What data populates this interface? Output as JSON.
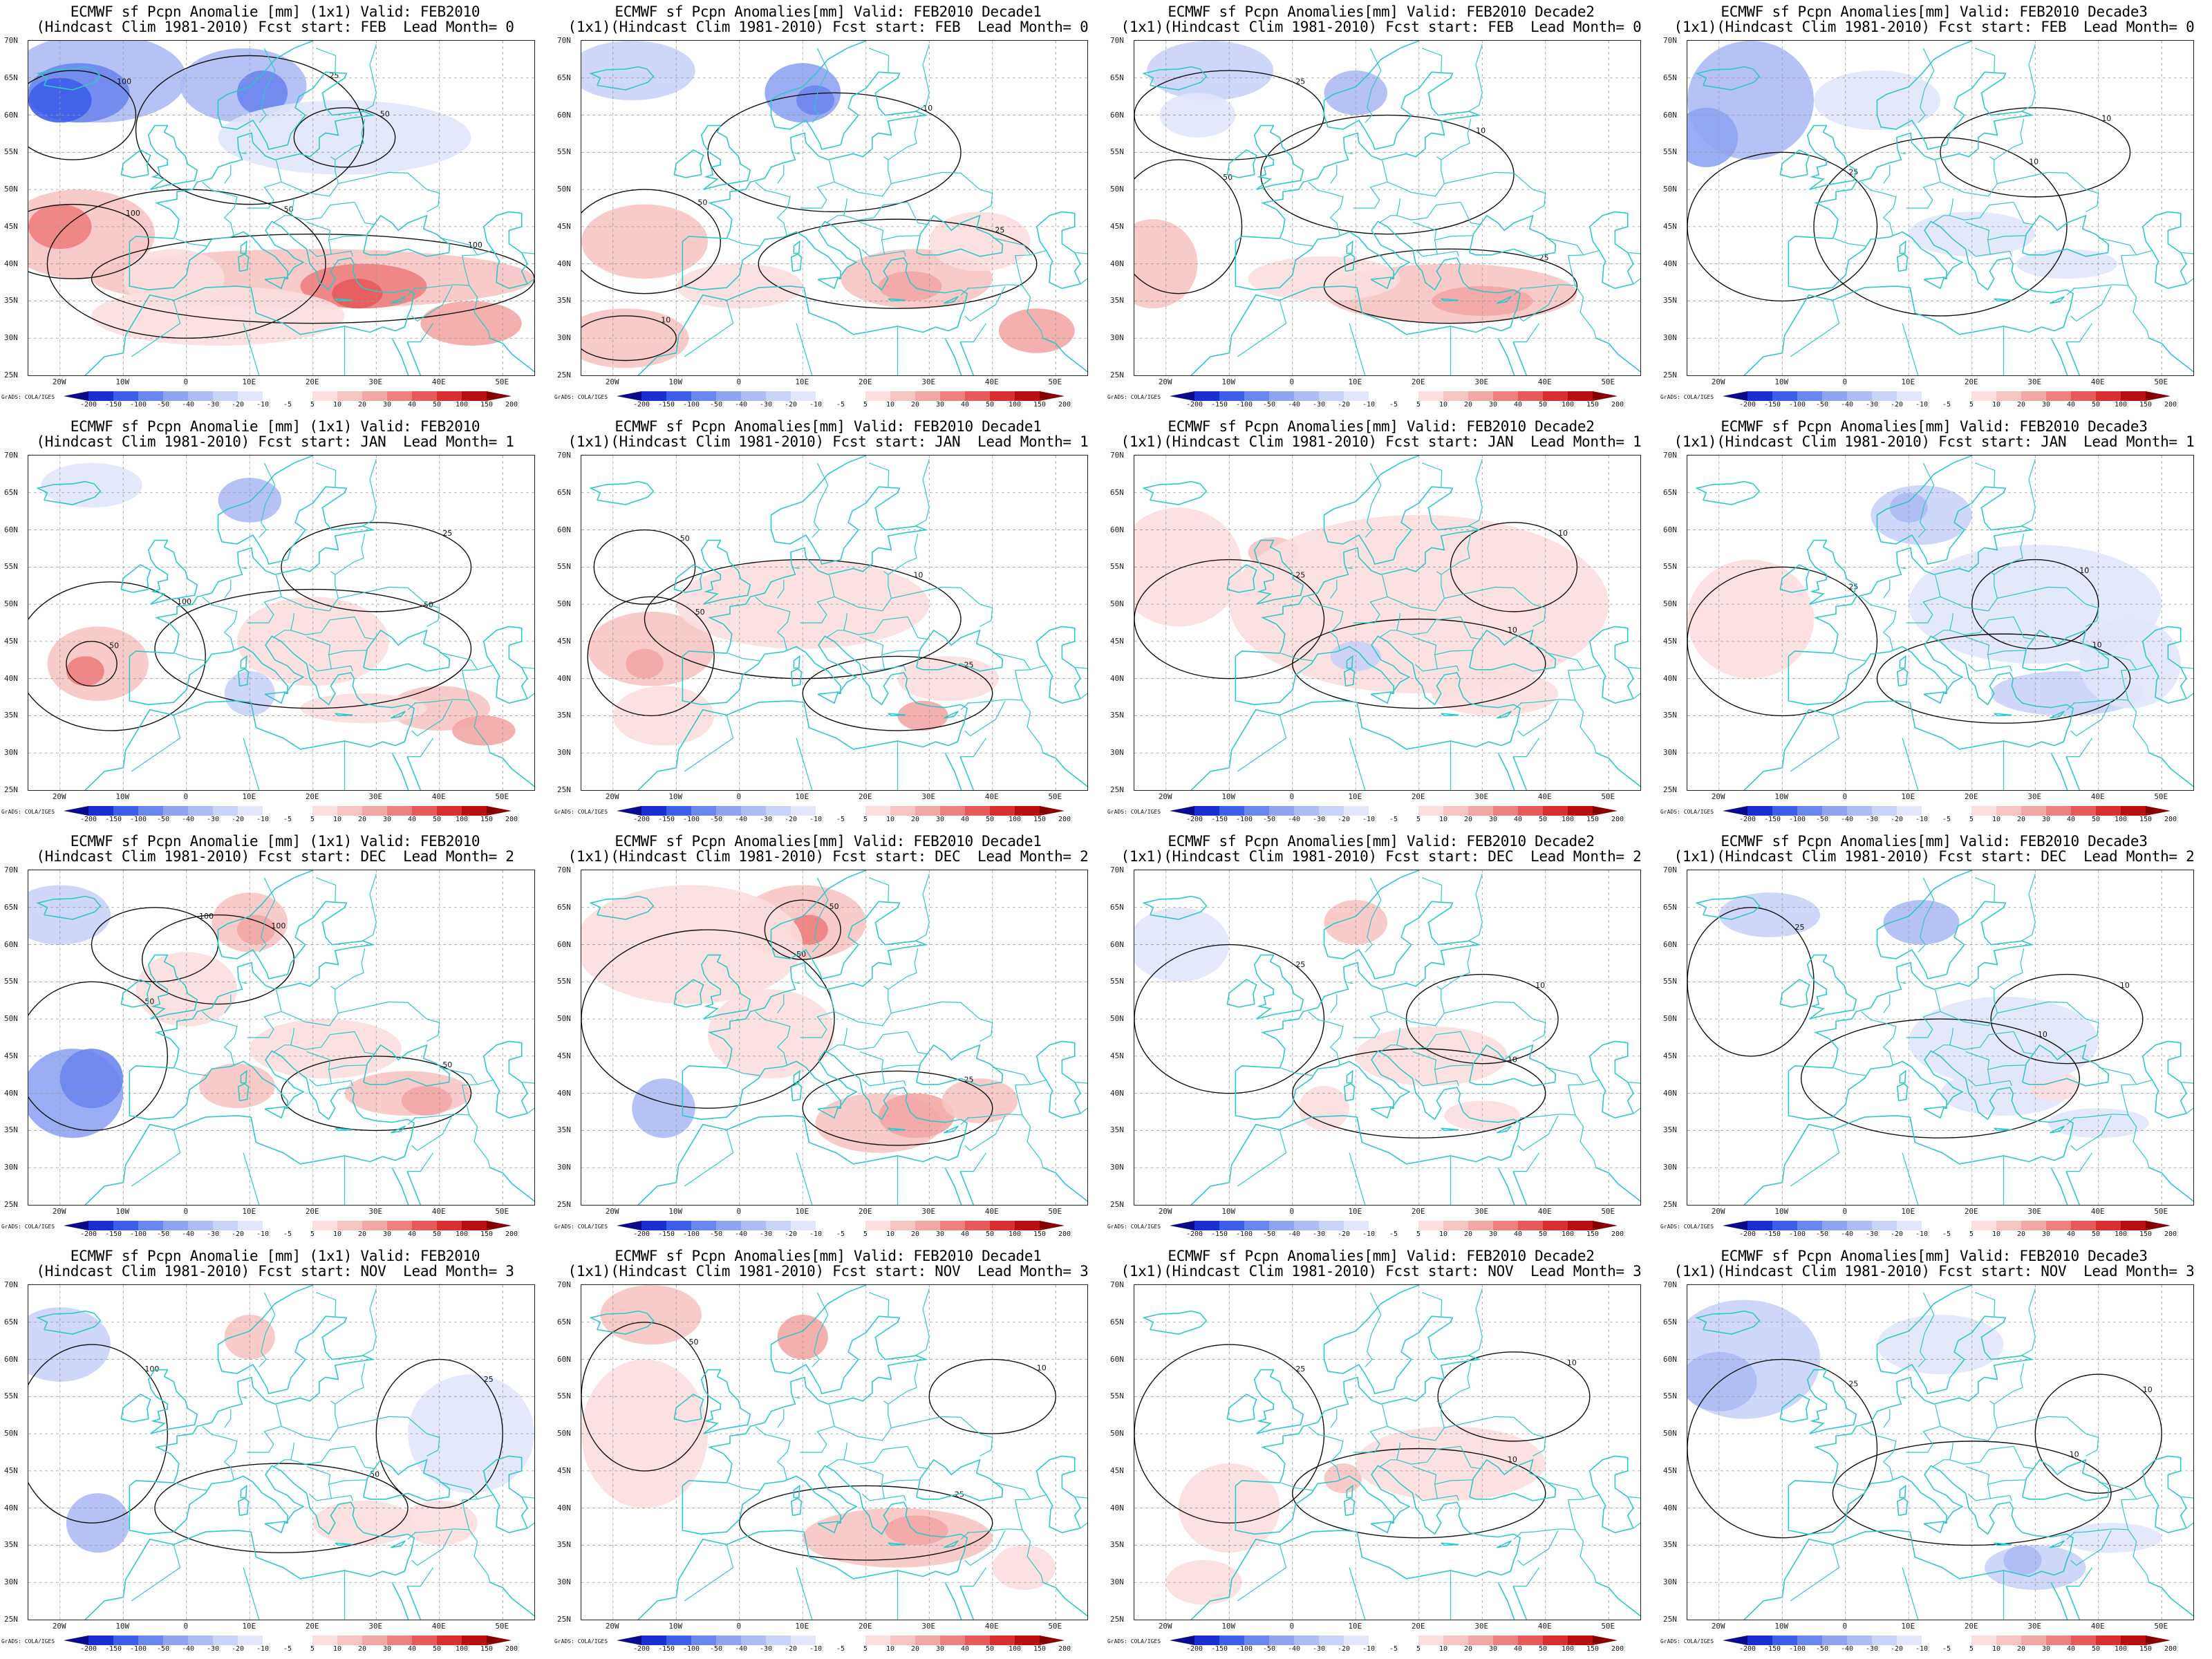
{
  "panels": [
    {
      "line1": "ECMWF sf Pcpn Anomalie [mm] (1x1) Valid: FEB2010",
      "line2": "(Hindcast Clim 1981-2010) Fcst start: FEB  Lead Month= 0",
      "style": 0
    },
    {
      "line1": "ECMWF sf Pcpn Anomalies[mm] Valid: FEB2010 Decade1",
      "line2": "(1x1)(Hindcast Clim 1981-2010) Fcst start: FEB  Lead Month= 0",
      "style": 1
    },
    {
      "line1": "ECMWF sf Pcpn Anomalies[mm] Valid: FEB2010 Decade2",
      "line2": "(1x1)(Hindcast Clim 1981-2010) Fcst start: FEB  Lead Month= 0",
      "style": 2
    },
    {
      "line1": "ECMWF sf Pcpn Anomalies[mm] Valid: FEB2010 Decade3",
      "line2": "(1x1)(Hindcast Clim 1981-2010) Fcst start: FEB  Lead Month= 0",
      "style": 3
    },
    {
      "line1": "ECMWF sf Pcpn Anomalie [mm] (1x1) Valid: FEB2010",
      "line2": "(Hindcast Clim 1981-2010) Fcst start: JAN  Lead Month= 1",
      "style": 4
    },
    {
      "line1": "ECMWF sf Pcpn Anomalies[mm] Valid: FEB2010 Decade1",
      "line2": "(1x1)(Hindcast Clim 1981-2010) Fcst start: JAN  Lead Month= 1",
      "style": 5
    },
    {
      "line1": "ECMWF sf Pcpn Anomalies[mm] Valid: FEB2010 Decade2",
      "line2": "(1x1)(Hindcast Clim 1981-2010) Fcst start: JAN  Lead Month= 1",
      "style": 6
    },
    {
      "line1": "ECMWF sf Pcpn Anomalies[mm] Valid: FEB2010 Decade3",
      "line2": "(1x1)(Hindcast Clim 1981-2010) Fcst start: JAN  Lead Month= 1",
      "style": 7
    },
    {
      "line1": "ECMWF sf Pcpn Anomalie [mm] (1x1) Valid: FEB2010",
      "line2": "(Hindcast Clim 1981-2010) Fcst start: DEC  Lead Month= 2",
      "style": 8
    },
    {
      "line1": "ECMWF sf Pcpn Anomalies[mm] Valid: FEB2010 Decade1",
      "line2": "(1x1)(Hindcast Clim 1981-2010) Fcst start: DEC  Lead Month= 2",
      "style": 9
    },
    {
      "line1": "ECMWF sf Pcpn Anomalies[mm] Valid: FEB2010 Decade2",
      "line2": "(1x1)(Hindcast Clim 1981-2010) Fcst start: DEC  Lead Month= 2",
      "style": 10
    },
    {
      "line1": "ECMWF sf Pcpn Anomalies[mm] Valid: FEB2010 Decade3",
      "line2": "(1x1)(Hindcast Clim 1981-2010) Fcst start: DEC  Lead Month= 2",
      "style": 11
    },
    {
      "line1": "ECMWF sf Pcpn Anomalie [mm] (1x1) Valid: FEB2010",
      "line2": "(Hindcast Clim 1981-2010) Fcst start: NOV  Lead Month= 3",
      "style": 12
    },
    {
      "line1": "ECMWF sf Pcpn Anomalies[mm] Valid: FEB2010 Decade1",
      "line2": "(1x1)(Hindcast Clim 1981-2010) Fcst start: NOV  Lead Month= 3",
      "style": 13
    },
    {
      "line1": "ECMWF sf Pcpn Anomalies[mm] Valid: FEB2010 Decade2",
      "line2": "(1x1)(Hindcast Clim 1981-2010) Fcst start: NOV  Lead Month= 3",
      "style": 14
    },
    {
      "line1": "ECMWF sf Pcpn Anomalies[mm] Valid: FEB2010 Decade3",
      "line2": "(1x1)(Hindcast Clim 1981-2010) Fcst start: NOV  Lead Month= 3",
      "style": 15
    }
  ],
  "lat_labels": [
    "70N",
    "65N",
    "60N",
    "55N",
    "50N",
    "45N",
    "40N",
    "35N",
    "30N",
    "25N"
  ],
  "lon_labels": [
    "20W",
    "10W",
    "0",
    "10E",
    "20E",
    "30E",
    "40E",
    "50E"
  ],
  "colorbar": {
    "labels": [
      "-200",
      "-150",
      "-100",
      "-50",
      "-40",
      "-30",
      "-20",
      "-10",
      "-5",
      "5",
      "10",
      "20",
      "30",
      "40",
      "50",
      "100",
      "150",
      "200"
    ],
    "colors": [
      "#0a0a8c",
      "#1a2fd0",
      "#3c5ee8",
      "#6b86ee",
      "#8fa3f2",
      "#aebbf5",
      "#c9d2f8",
      "#e1e6fb",
      "#ffffff",
      "#ffffff",
      "#fbdede",
      "#f7c4c4",
      "#f3a6a6",
      "#ee8080",
      "#e65a5a",
      "#d83030",
      "#b81010",
      "#8a0000"
    ],
    "credit": "GrADS: COLA/IGES"
  },
  "colors": {
    "coast": "#2ec8c8",
    "contour": "#111111",
    "grid": "#9a9a9a"
  }
}
